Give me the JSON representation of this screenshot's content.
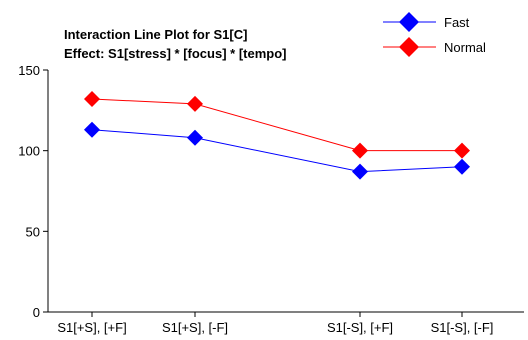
{
  "chart_data": {
    "type": "line",
    "title": "Interaction Line Plot for S1[C]",
    "subtitle": "Effect: S1[stress] * [focus] * [tempo]",
    "xlabel": "",
    "ylabel": "",
    "categories": [
      "S1[+S], [+F]",
      "S1[+S], [-F]",
      "S1[-S], [+F]",
      "S1[-S], [-F]"
    ],
    "ylim": [
      0,
      150
    ],
    "yticks": [
      0,
      50,
      100,
      150
    ],
    "grid": false,
    "legend_position": "top-right",
    "series": [
      {
        "name": "Fast",
        "color": "#0000ff",
        "marker": "diamond",
        "values": [
          113,
          108,
          87,
          90
        ]
      },
      {
        "name": "Normal",
        "color": "#ff0000",
        "marker": "diamond",
        "values": [
          132,
          129,
          100,
          100
        ]
      }
    ]
  }
}
